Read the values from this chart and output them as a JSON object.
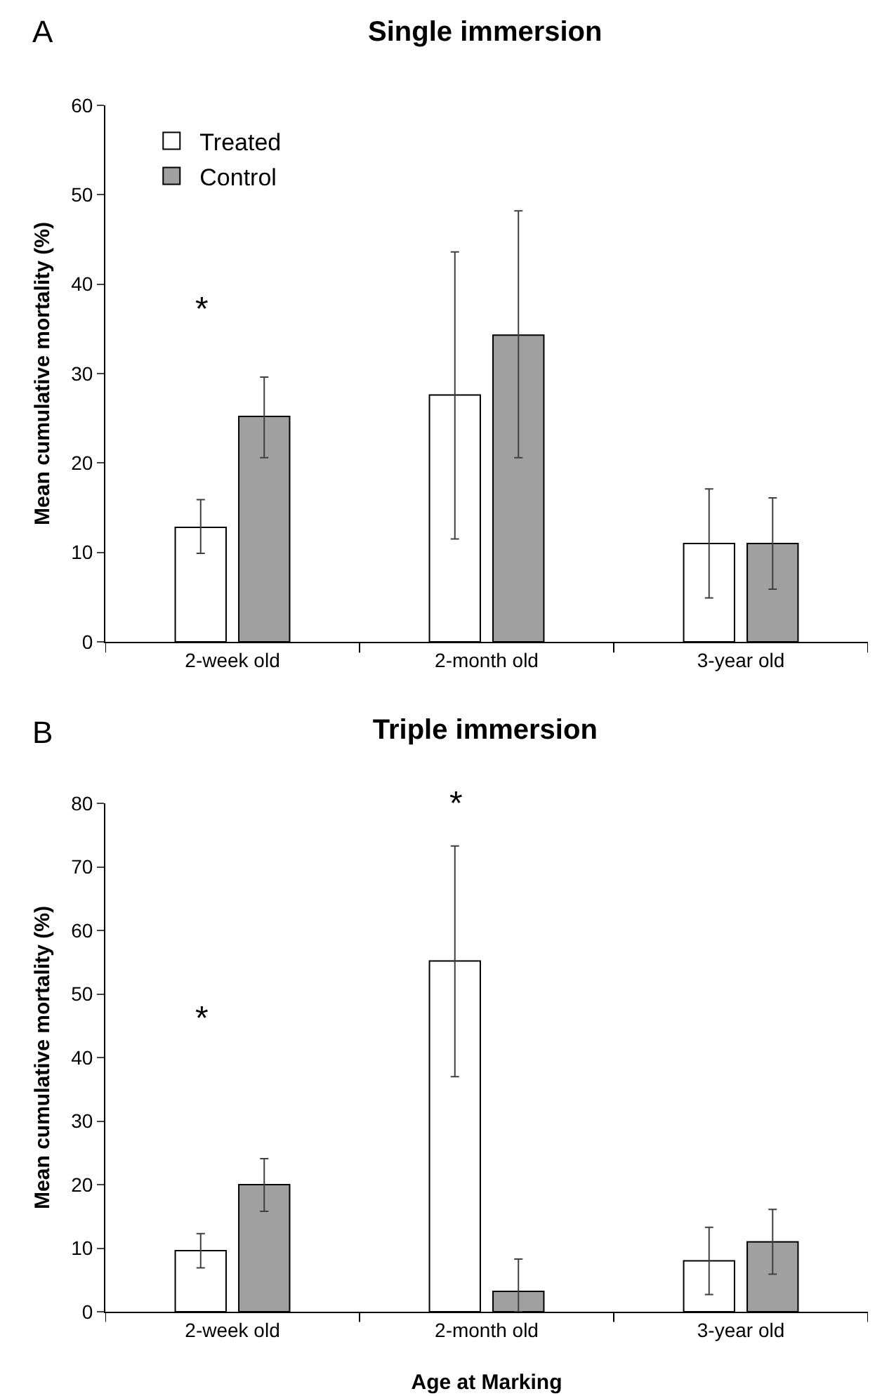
{
  "chart_data": [
    {
      "type": "bar",
      "title": "Single immersion",
      "ylabel": "Mean cumulative mortality (%)",
      "categories": [
        "2-week old",
        "2-month old",
        "3-year old"
      ],
      "series": [
        {
          "name": "Treated",
          "color": "#ffffff",
          "values": [
            12.8,
            27.6,
            11
          ],
          "errors": [
            [
              9.9,
              15.9
            ],
            [
              11.5,
              43.6
            ],
            [
              4.9,
              17.1
            ]
          ]
        },
        {
          "name": "Control",
          "color": "#a0a0a0",
          "values": [
            25.2,
            34.3,
            11
          ],
          "errors": [
            [
              20.6,
              29.6
            ],
            [
              20.6,
              48.2
            ],
            [
              5.9,
              16.1
            ]
          ]
        }
      ],
      "ylim": [
        0,
        60
      ],
      "yticks": [
        0,
        10,
        20,
        30,
        40,
        50,
        60
      ],
      "grid": false,
      "legend": "top left",
      "annotations": [
        "A",
        "*"
      ]
    },
    {
      "type": "bar",
      "title": "Triple immersion",
      "xlabel": "Age at Marking",
      "ylabel": "Mean cumulative mortality (%)",
      "categories": [
        "2-week old",
        "2-month old",
        "3-year old"
      ],
      "series": [
        {
          "color": "#ffffff",
          "values": [
            9.6,
            55.2,
            8
          ],
          "errors": [
            [
              6.9,
              12.3
            ],
            [
              37,
              73.3
            ],
            [
              2.7,
              13.3
            ]
          ]
        },
        {
          "color": "#a0a0a0",
          "values": [
            20,
            3.2,
            11
          ],
          "errors": [
            [
              15.8,
              24.1
            ],
            [
              0,
              8.3
            ],
            [
              5.9,
              16.1
            ]
          ]
        }
      ],
      "ylim": [
        0,
        80
      ],
      "yticks": [
        0,
        10,
        20,
        30,
        40,
        50,
        60,
        70,
        80
      ],
      "grid": false,
      "legend": false,
      "annotations": [
        "B",
        "*",
        "*"
      ]
    }
  ]
}
